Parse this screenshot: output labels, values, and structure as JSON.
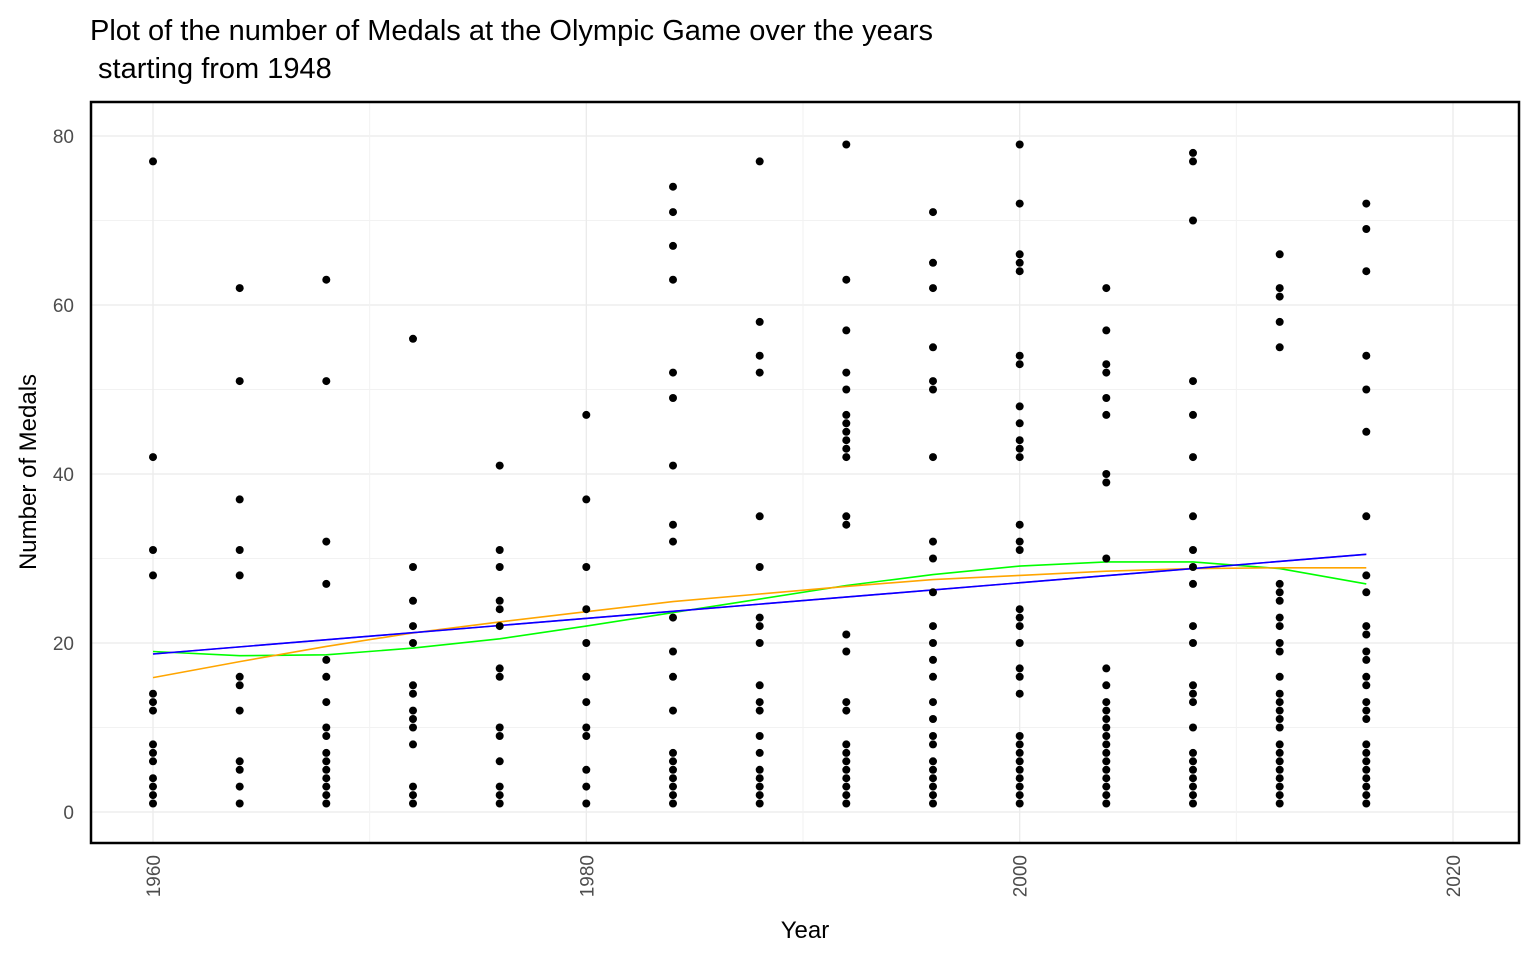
{
  "chart_data": {
    "type": "scatter",
    "title_lines": [
      "Plot of the number of Medals at the Olympic Game over the years",
      " starting from 1948"
    ],
    "xlabel": "Year",
    "ylabel": "Number of Medals",
    "xlim": [
      1945,
      2016
    ],
    "ylim": [
      -4,
      84
    ],
    "x_ticks": [
      {
        "value": 1960,
        "label": "1960"
      },
      {
        "value": 1980,
        "label": "1980"
      },
      {
        "value": 2000,
        "label": "2000"
      },
      {
        "value": 2020,
        "label": "2020"
      }
    ],
    "y_ticks": [
      {
        "value": 0,
        "label": "0"
      },
      {
        "value": 20,
        "label": "20"
      },
      {
        "value": 40,
        "label": "40"
      },
      {
        "value": 60,
        "label": "60"
      },
      {
        "value": 80,
        "label": "80"
      }
    ],
    "grid": true,
    "point_color": "#000000",
    "points": [
      {
        "year": 1960,
        "values": [
          77,
          42,
          31,
          28,
          14,
          13,
          12,
          8,
          7,
          6,
          4,
          3,
          2,
          1
        ]
      },
      {
        "year": 1964,
        "values": [
          62,
          51,
          37,
          31,
          28,
          16,
          15,
          12,
          6,
          5,
          3,
          1
        ]
      },
      {
        "year": 1968,
        "values": [
          63,
          51,
          32,
          27,
          18,
          16,
          13,
          10,
          9,
          7,
          6,
          5,
          4,
          3,
          2,
          1
        ]
      },
      {
        "year": 1972,
        "values": [
          56,
          29,
          25,
          22,
          20,
          15,
          14,
          12,
          11,
          10,
          8,
          3,
          2,
          1
        ]
      },
      {
        "year": 1976,
        "values": [
          41,
          31,
          29,
          25,
          24,
          22,
          17,
          16,
          10,
          9,
          6,
          3,
          2,
          1
        ]
      },
      {
        "year": 1980,
        "values": [
          47,
          37,
          29,
          24,
          20,
          16,
          13,
          10,
          9,
          5,
          3,
          1
        ]
      },
      {
        "year": 1984,
        "values": [
          74,
          71,
          67,
          63,
          52,
          49,
          41,
          34,
          32,
          23,
          19,
          16,
          12,
          7,
          6,
          5,
          4,
          3,
          2,
          1
        ]
      },
      {
        "year": 1988,
        "values": [
          77,
          58,
          54,
          52,
          35,
          29,
          23,
          22,
          20,
          15,
          13,
          12,
          9,
          7,
          5,
          4,
          3,
          2,
          1
        ]
      },
      {
        "year": 1992,
        "values": [
          79,
          63,
          57,
          52,
          50,
          47,
          46,
          45,
          44,
          43,
          42,
          35,
          34,
          21,
          19,
          13,
          12,
          8,
          7,
          6,
          5,
          4,
          3,
          2,
          1
        ]
      },
      {
        "year": 1996,
        "values": [
          71,
          65,
          62,
          55,
          51,
          50,
          42,
          32,
          30,
          26,
          22,
          20,
          18,
          16,
          13,
          11,
          9,
          8,
          6,
          5,
          4,
          3,
          2,
          1
        ]
      },
      {
        "year": 2000,
        "values": [
          79,
          72,
          66,
          65,
          64,
          54,
          53,
          48,
          46,
          44,
          43,
          42,
          34,
          32,
          31,
          24,
          23,
          22,
          20,
          17,
          16,
          14,
          9,
          8,
          7,
          6,
          5,
          4,
          3,
          2,
          1
        ]
      },
      {
        "year": 2004,
        "values": [
          62,
          57,
          53,
          52,
          49,
          47,
          40,
          39,
          30,
          17,
          15,
          13,
          12,
          11,
          10,
          9,
          8,
          7,
          6,
          5,
          4,
          3,
          2,
          1
        ]
      },
      {
        "year": 2008,
        "values": [
          78,
          77,
          70,
          51,
          47,
          42,
          35,
          31,
          29,
          27,
          22,
          20,
          15,
          14,
          13,
          10,
          7,
          6,
          5,
          4,
          3,
          2,
          1
        ]
      },
      {
        "year": 2012,
        "values": [
          66,
          62,
          61,
          58,
          55,
          27,
          26,
          25,
          23,
          22,
          20,
          19,
          16,
          14,
          13,
          12,
          11,
          10,
          8,
          7,
          6,
          5,
          4,
          3,
          2,
          1
        ]
      },
      {
        "year": 2016,
        "values": [
          72,
          69,
          64,
          54,
          50,
          45,
          35,
          28,
          26,
          22,
          21,
          19,
          18,
          16,
          15,
          13,
          12,
          11,
          8,
          7,
          6,
          5,
          4,
          3,
          2,
          1
        ]
      }
    ],
    "lines": [
      {
        "color": "#00ff00",
        "x": [
          1960,
          1964,
          1968,
          1972,
          1976,
          1980,
          1984,
          1988,
          1992,
          1996,
          2000,
          2004,
          2008,
          2012,
          2016
        ],
        "y": [
          19.0,
          18.5,
          18.6,
          19.4,
          20.5,
          22.0,
          23.6,
          25.2,
          26.8,
          28.1,
          29.1,
          29.6,
          29.6,
          28.8,
          27.0
        ]
      },
      {
        "color": "#ffa500",
        "x": [
          1960,
          1964,
          1968,
          1972,
          1976,
          1980,
          1984,
          1988,
          1992,
          1996,
          2000,
          2004,
          2008,
          2012,
          2016
        ],
        "y": [
          15.9,
          17.8,
          19.6,
          21.2,
          22.5,
          23.7,
          24.9,
          25.8,
          26.7,
          27.5,
          28.0,
          28.5,
          28.8,
          28.9,
          28.9
        ]
      },
      {
        "color": "#ff00ff",
        "x": [
          1960,
          2016
        ],
        "y": [
          18.7,
          30.5
        ]
      },
      {
        "color": "#0000ff",
        "x": [
          1960,
          2016
        ],
        "y": [
          18.7,
          30.5
        ]
      }
    ]
  }
}
